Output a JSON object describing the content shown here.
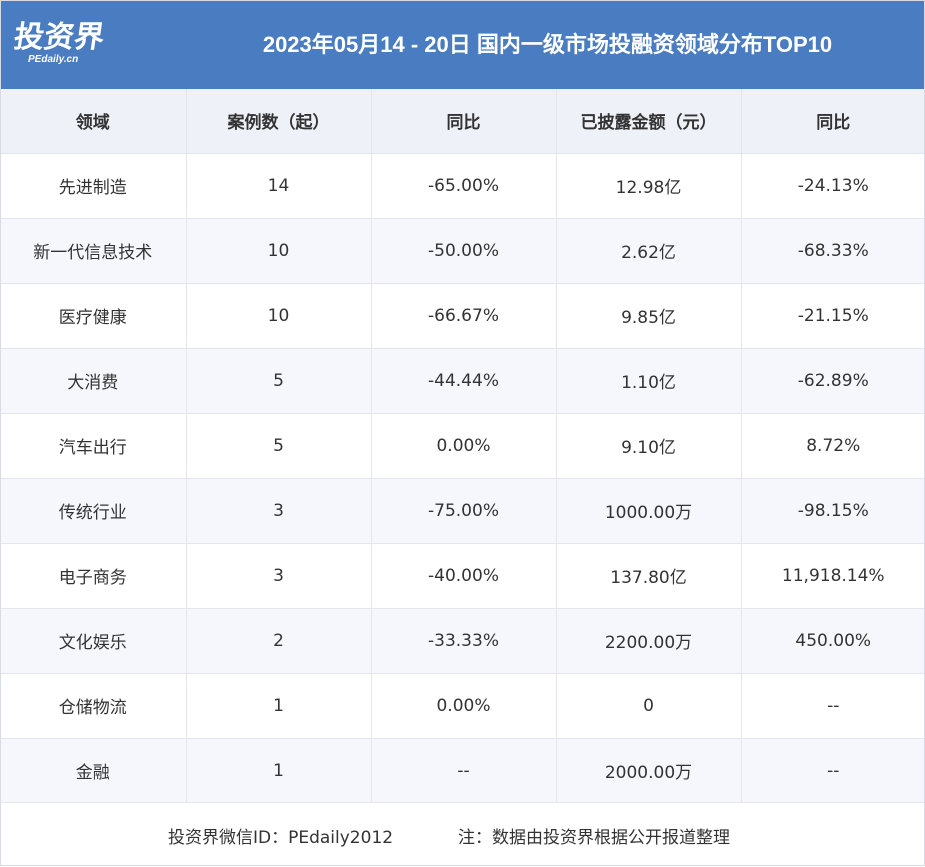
{
  "header": {
    "logo_text": "投资界",
    "logo_sub": "PEdaily.cn",
    "title": "2023年05月14 - 20日 国内一级市场投融资领域分布TOP10"
  },
  "table": {
    "columns": [
      "领域",
      "案例数（起）",
      "同比",
      "已披露金额（元）",
      "同比"
    ],
    "rows": [
      [
        "先进制造",
        "14",
        "-65.00%",
        "12.98亿",
        "-24.13%"
      ],
      [
        "新一代信息技术",
        "10",
        "-50.00%",
        "2.62亿",
        "-68.33%"
      ],
      [
        "医疗健康",
        "10",
        "-66.67%",
        "9.85亿",
        "-21.15%"
      ],
      [
        "大消费",
        "5",
        "-44.44%",
        "1.10亿",
        "-62.89%"
      ],
      [
        "汽车出行",
        "5",
        "0.00%",
        "9.10亿",
        "8.72%"
      ],
      [
        "传统行业",
        "3",
        "-75.00%",
        "1000.00万",
        "-98.15%"
      ],
      [
        "电子商务",
        "3",
        "-40.00%",
        "137.80亿",
        "11,918.14%"
      ],
      [
        "文化娱乐",
        "2",
        "-33.33%",
        "2200.00万",
        "450.00%"
      ],
      [
        "仓储物流",
        "1",
        "0.00%",
        "0",
        "--"
      ],
      [
        "金融",
        "1",
        "--",
        "2000.00万",
        "--"
      ]
    ]
  },
  "footer": {
    "wechat": "投资界微信ID：PEdaily2012",
    "note": "注：数据由投资界根据公开报道整理"
  },
  "colors": {
    "header_bg": "#4a7cc1",
    "header_row_bg": "#eef1f7",
    "alt_row_bg": "#f5f7fc"
  }
}
